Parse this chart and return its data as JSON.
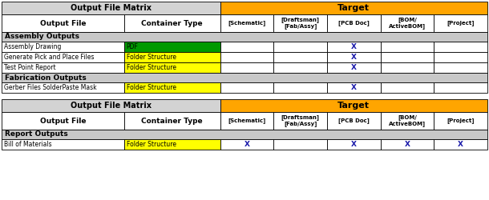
{
  "figsize": [
    6.1,
    2.5
  ],
  "dpi": 100,
  "colors": {
    "orange": "#FFA500",
    "yellow": "#FFFF00",
    "green": "#009900",
    "light_gray": "#D3D3D3",
    "white": "#FFFFFF",
    "black": "#000000",
    "section_bg": "#C8C8C8"
  },
  "table1": {
    "title_left": "Output File Matrix",
    "title_right": "Target",
    "col_headers": [
      "[Schematic]",
      "[Draftsman]\n[Fab/Assy]",
      "[PCB Doc]",
      "[BOM/\nActiveBOM]",
      "[Project]"
    ],
    "subheaders": [
      "Output File",
      "Container Type"
    ],
    "sections": [
      {
        "name": "Assembly Outputs",
        "rows": [
          {
            "name": "Assembly Drawing",
            "container": "PDF",
            "container_color": "#009900",
            "marks": [
              0,
              0,
              1,
              0,
              0
            ]
          },
          {
            "name": "Generate Pick and Place Files",
            "container": "Folder Structure",
            "container_color": "#FFFF00",
            "marks": [
              0,
              0,
              1,
              0,
              0
            ]
          },
          {
            "name": "Test Point Report",
            "container": "Folder Structure",
            "container_color": "#FFFF00",
            "marks": [
              0,
              0,
              1,
              0,
              0
            ]
          }
        ]
      },
      {
        "name": "Fabrication Outputs",
        "rows": [
          {
            "name": "Gerber Files SolderPaste Mask",
            "container": "Folder Structure",
            "container_color": "#FFFF00",
            "marks": [
              0,
              0,
              1,
              0,
              0
            ]
          }
        ]
      }
    ]
  },
  "table2": {
    "title_left": "Output File Matrix",
    "title_right": "Target",
    "col_headers": [
      "[Schematic]",
      "[Draftsman]\n[Fab/Assy]",
      "[PCB Doc]",
      "[BOM/\nActiveBOM]",
      "[Project]"
    ],
    "subheaders": [
      "Output File",
      "Container Type"
    ],
    "sections": [
      {
        "name": "Report Outputs",
        "rows": [
          {
            "name": "Bill of Materials",
            "container": "Folder Structure",
            "container_color": "#FFFF00",
            "marks": [
              1,
              0,
              1,
              1,
              1
            ]
          }
        ]
      }
    ]
  }
}
